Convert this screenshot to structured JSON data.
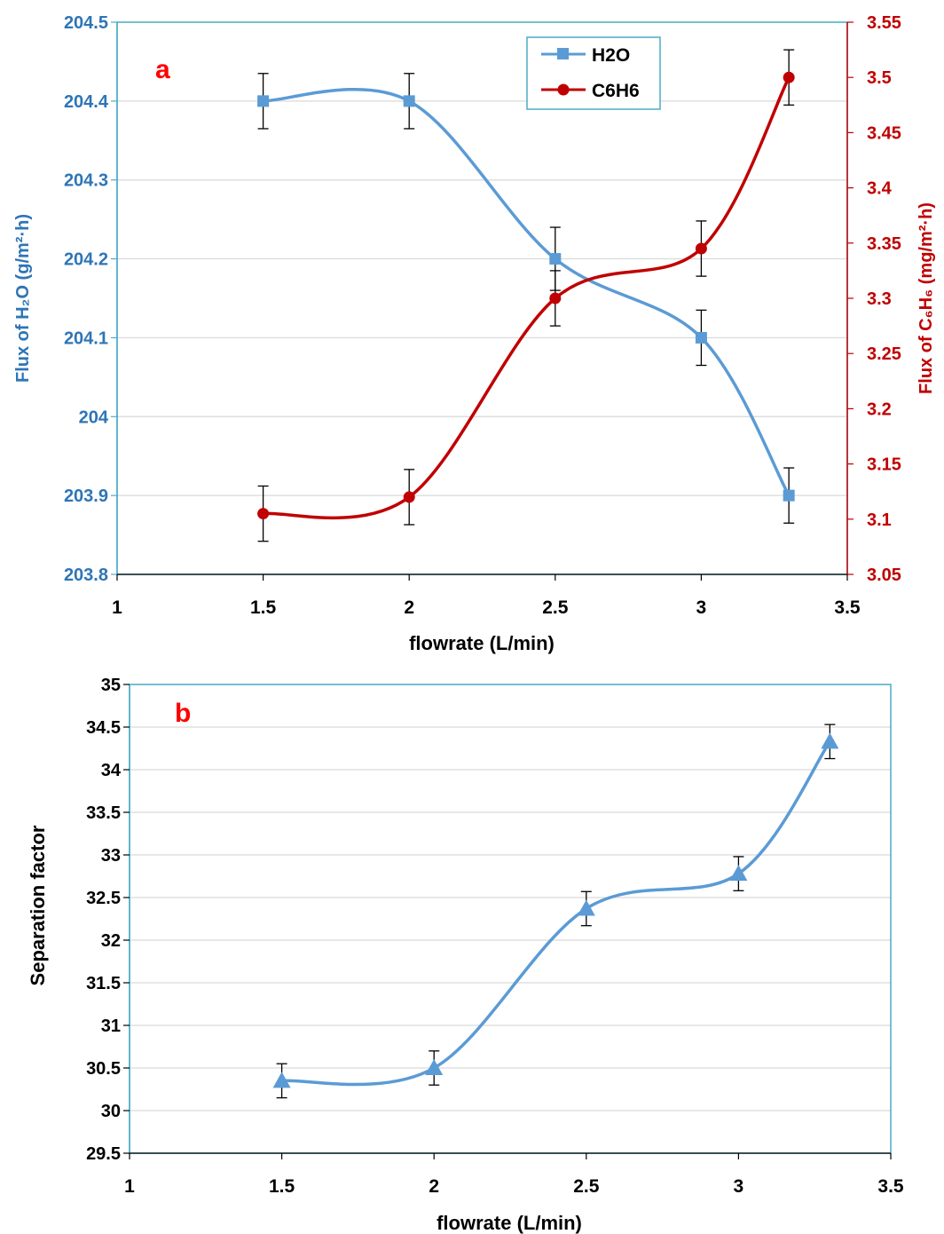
{
  "chart_data": [
    {
      "panel_label": "a",
      "type": "line",
      "x": [
        1.5,
        2,
        2.5,
        3,
        3.3
      ],
      "xlabel": "flowrate (L/min)",
      "xlim": [
        1,
        3.5
      ],
      "xticks": [
        1,
        1.5,
        2,
        2.5,
        3,
        3.5
      ],
      "ylabel_left": "Flux of H₂O (g/m²·h)",
      "ylim_left": [
        203.8,
        204.5
      ],
      "yticks_left": [
        203.8,
        203.9,
        204,
        204.1,
        204.2,
        204.3,
        204.4,
        204.5
      ],
      "ylabel_right": "Flux of C₆H₆ (mg/m²·h)",
      "ylim_right": [
        3.05,
        3.55
      ],
      "yticks_right": [
        3.05,
        3.1,
        3.15,
        3.2,
        3.25,
        3.3,
        3.35,
        3.4,
        3.45,
        3.5,
        3.55
      ],
      "grid": true,
      "legend_position": "top-right",
      "series": [
        {
          "name": "H2O",
          "axis": "left",
          "marker": "square",
          "color": "#5b9bd5",
          "values": [
            204.4,
            204.4,
            204.2,
            204.1,
            203.9
          ],
          "errors": [
            0.035,
            0.035,
            0.04,
            0.035,
            0.035
          ]
        },
        {
          "name": "C6H6",
          "axis": "right",
          "marker": "circle",
          "color": "#c00000",
          "values": [
            3.105,
            3.12,
            3.3,
            3.345,
            3.5
          ],
          "errors": [
            0.025,
            0.025,
            0.025,
            0.025,
            0.025
          ]
        }
      ],
      "colors": {
        "left_axis": "#2e75b6",
        "right_axis": "#c00000",
        "panel_label": "#ff0000",
        "frame": "#4bacc6"
      }
    },
    {
      "panel_label": "b",
      "type": "line",
      "x": [
        1.5,
        2,
        2.5,
        3,
        3.3
      ],
      "xlabel": "flowrate (L/min)",
      "xlim": [
        1,
        3.5
      ],
      "xticks": [
        1,
        1.5,
        2,
        2.5,
        3,
        3.5
      ],
      "ylabel": "Separation factor",
      "ylim": [
        29.5,
        35
      ],
      "yticks": [
        29.5,
        30,
        30.5,
        31,
        31.5,
        32,
        32.5,
        33,
        33.5,
        34,
        34.5,
        35
      ],
      "grid": true,
      "series": [
        {
          "axis": "left",
          "marker": "triangle",
          "color": "#5b9bd5",
          "values": [
            30.35,
            30.5,
            32.37,
            32.78,
            34.33
          ],
          "errors": [
            0.2,
            0.2,
            0.2,
            0.2,
            0.2
          ]
        }
      ],
      "colors": {
        "axis_text": "#000000",
        "panel_label": "#ff0000",
        "frame": "#4bacc6"
      }
    }
  ]
}
